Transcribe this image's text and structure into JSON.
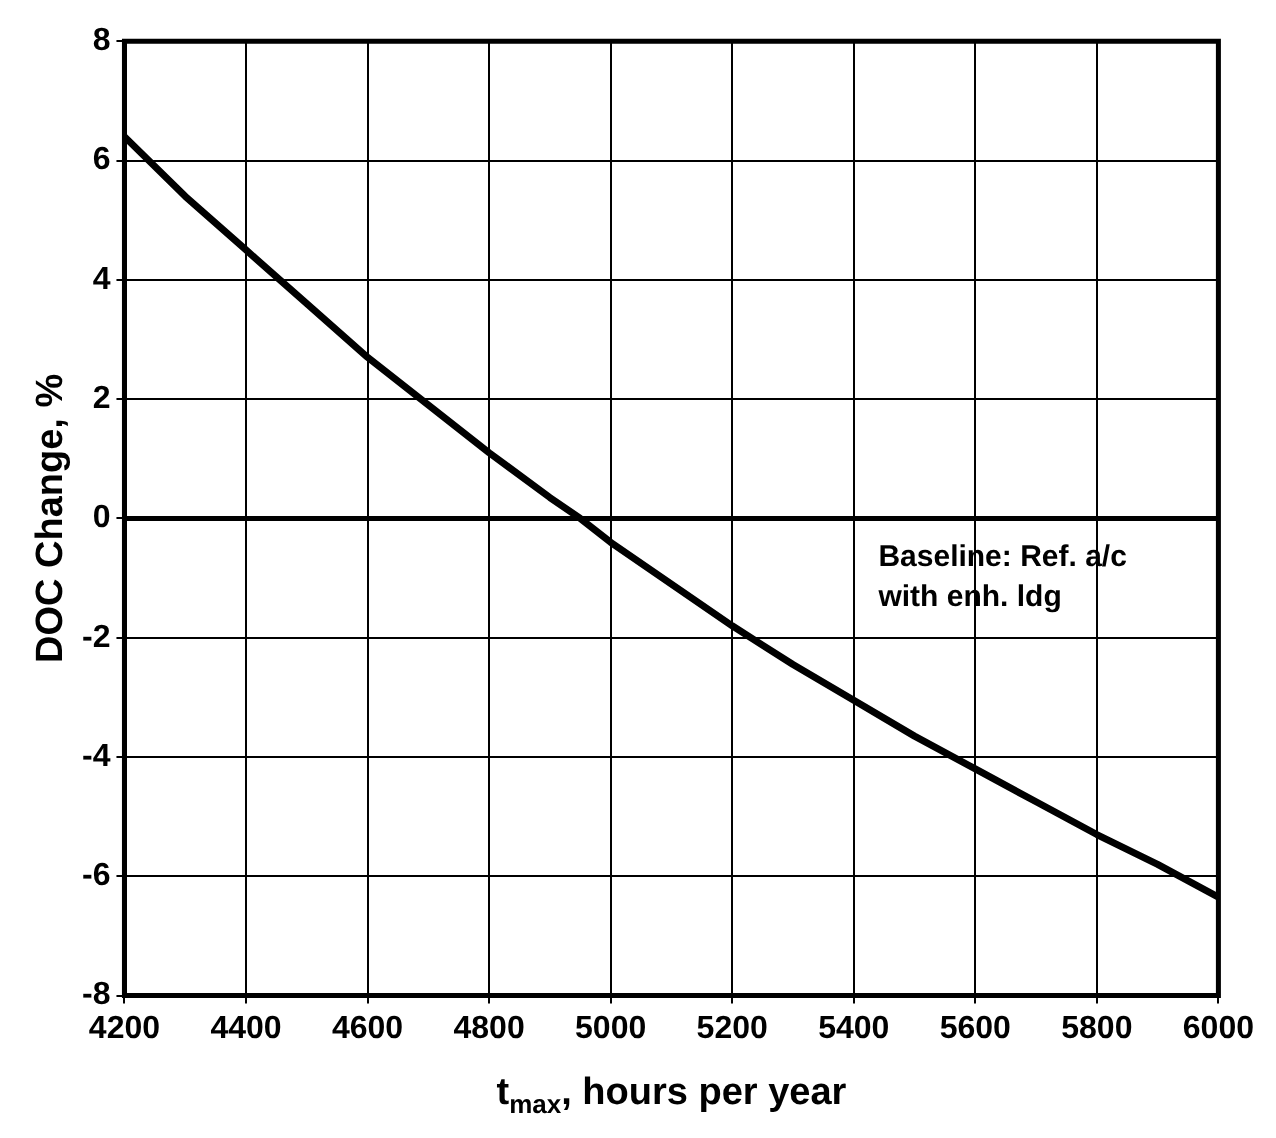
{
  "chart_data": {
    "type": "line",
    "xlabel": "t$_{max}$, hours per year",
    "ylabel": "DOC Change, %",
    "series": [
      {
        "color": "#000000",
        "x": [
          4200,
          4300,
          4400,
          4500,
          4600,
          4700,
          4800,
          4900,
          4950,
          5000,
          5100,
          5200,
          5300,
          5400,
          5500,
          5600,
          5700,
          5800,
          5900,
          6000
        ],
        "values": [
          6.4,
          5.4,
          4.5,
          3.6,
          2.7,
          1.9,
          1.1,
          0.35,
          0,
          -0.4,
          -1.1,
          -1.8,
          -2.45,
          -3.05,
          -3.65,
          -4.2,
          -4.75,
          -5.3,
          -5.8,
          -6.35
        ]
      }
    ],
    "xlim": [
      4200,
      6000
    ],
    "xticks": [
      4200,
      4400,
      4600,
      4800,
      5000,
      5200,
      5400,
      5600,
      5800,
      6000
    ],
    "ylim": [
      -8,
      8
    ],
    "yticks": [
      -8,
      -6,
      -4,
      -2,
      0,
      2,
      4,
      6,
      8
    ],
    "ref_lines": [
      {
        "axis": "y",
        "value": 0,
        "label": "Baseline: Ref. a/c with enh. ldg",
        "color": "#000000"
      }
    ],
    "grid": true,
    "legend": false,
    "marker": "none",
    "line_style": "solid"
  }
}
